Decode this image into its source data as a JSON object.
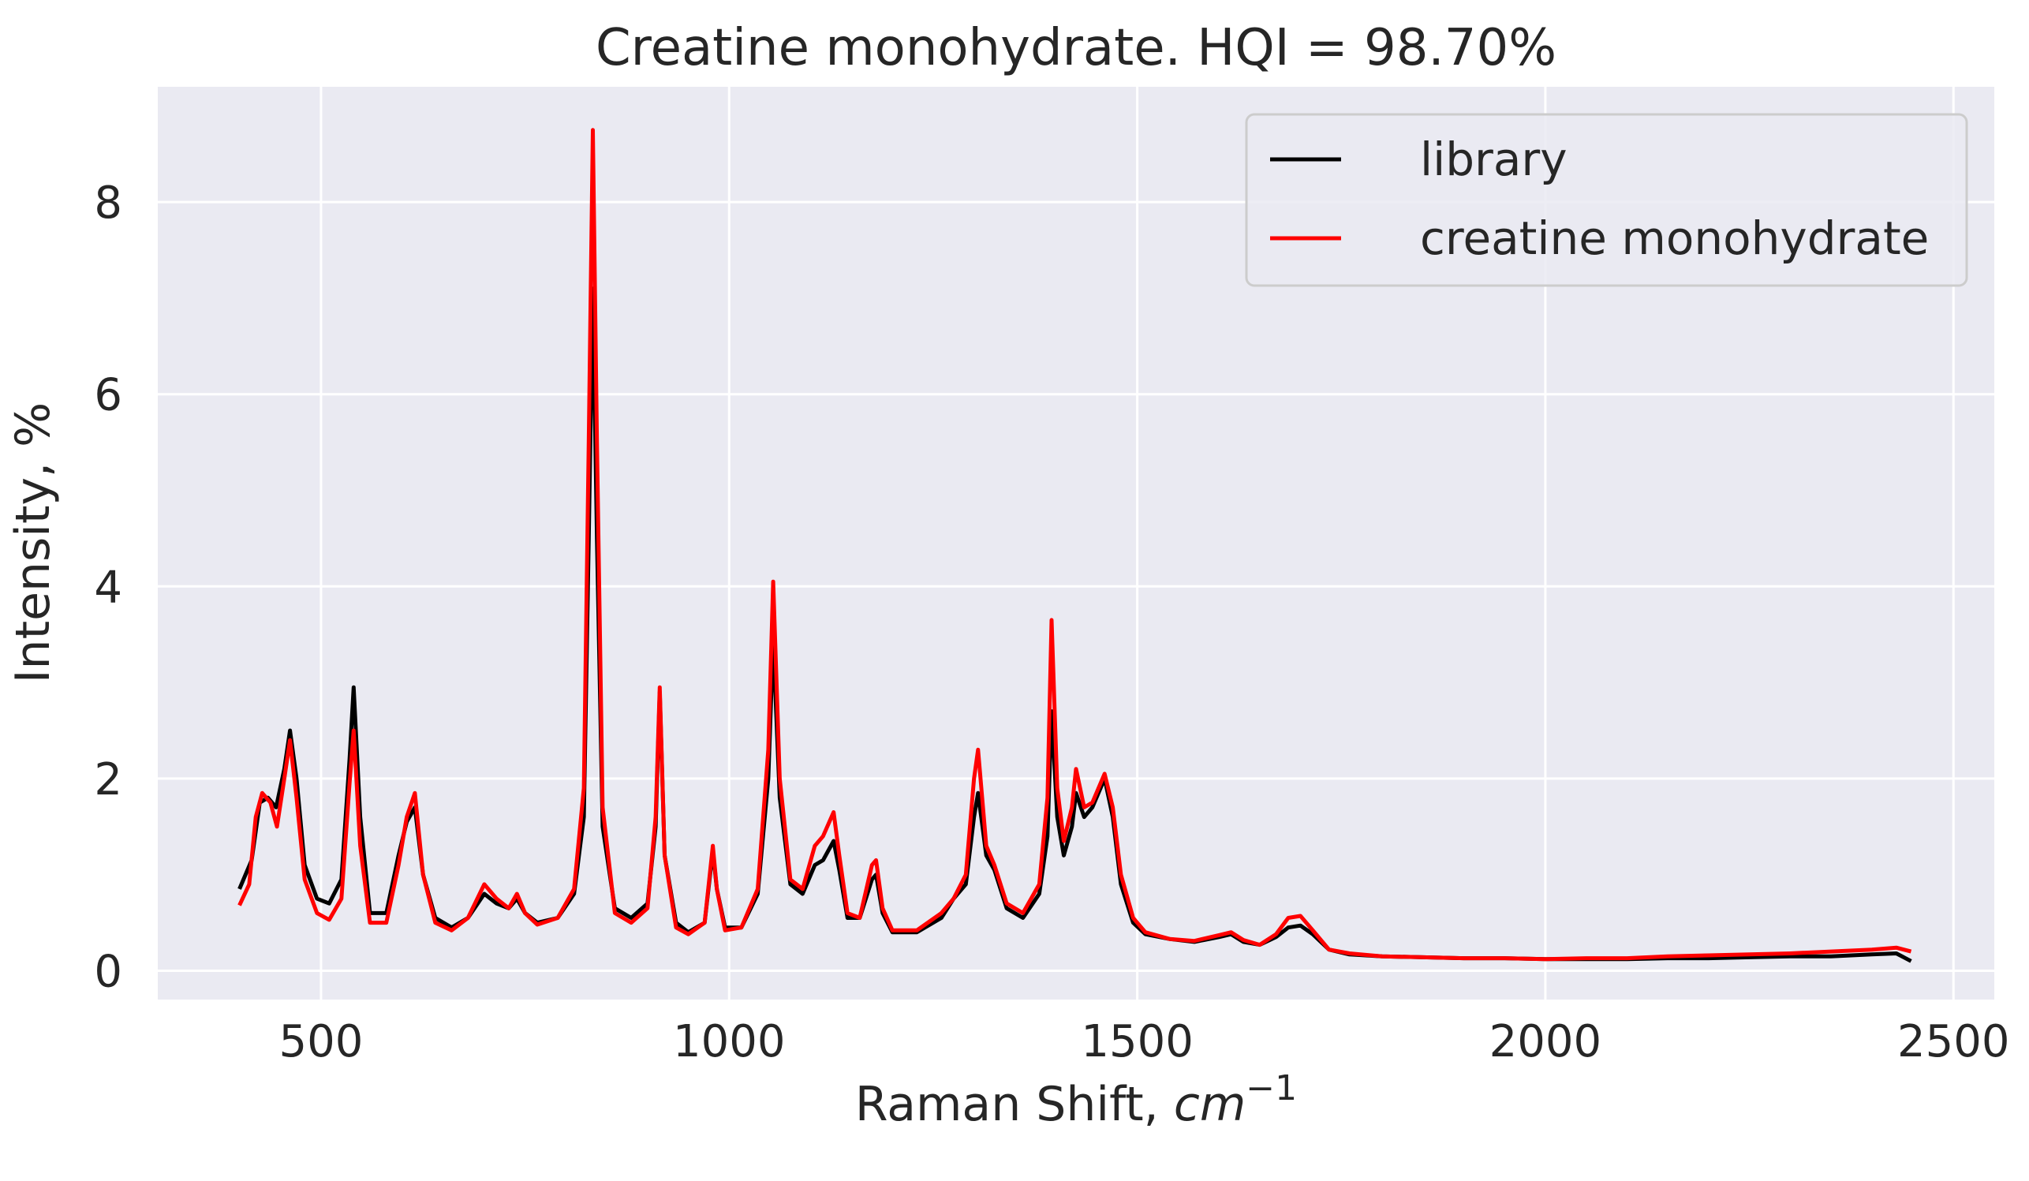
{
  "chart_data": {
    "type": "line",
    "title": "Creatine monohydrate. HQI = 98.70%",
    "xlabel": "Raman Shift, ",
    "xlabel_unit": "cm",
    "xlabel_exp": "−1",
    "ylabel": "Intensity, %",
    "xlim": [
      300,
      2550
    ],
    "ylim": [
      -0.3,
      9.2
    ],
    "xticks": [
      500,
      1000,
      1500,
      2000,
      2500
    ],
    "yticks": [
      0,
      2,
      4,
      6,
      8
    ],
    "grid": true,
    "legend_position": "top-right",
    "background": "#eaeaf2",
    "series": [
      {
        "name": "library",
        "color": "#000000",
        "points": [
          [
            400,
            0.85
          ],
          [
            415,
            1.15
          ],
          [
            425,
            1.75
          ],
          [
            435,
            1.8
          ],
          [
            445,
            1.7
          ],
          [
            455,
            2.1
          ],
          [
            462,
            2.5
          ],
          [
            470,
            2.0
          ],
          [
            480,
            1.1
          ],
          [
            495,
            0.75
          ],
          [
            510,
            0.7
          ],
          [
            525,
            0.95
          ],
          [
            535,
            2.2
          ],
          [
            540,
            2.95
          ],
          [
            548,
            1.6
          ],
          [
            560,
            0.6
          ],
          [
            580,
            0.6
          ],
          [
            595,
            1.2
          ],
          [
            605,
            1.55
          ],
          [
            615,
            1.7
          ],
          [
            625,
            1.0
          ],
          [
            640,
            0.55
          ],
          [
            660,
            0.45
          ],
          [
            680,
            0.55
          ],
          [
            700,
            0.8
          ],
          [
            715,
            0.7
          ],
          [
            730,
            0.65
          ],
          [
            740,
            0.75
          ],
          [
            750,
            0.6
          ],
          [
            765,
            0.5
          ],
          [
            790,
            0.55
          ],
          [
            810,
            0.8
          ],
          [
            822,
            1.6
          ],
          [
            828,
            4.5
          ],
          [
            833,
            7.1
          ],
          [
            838,
            4.5
          ],
          [
            845,
            1.5
          ],
          [
            860,
            0.65
          ],
          [
            880,
            0.55
          ],
          [
            900,
            0.7
          ],
          [
            910,
            1.5
          ],
          [
            915,
            2.9
          ],
          [
            921,
            1.2
          ],
          [
            935,
            0.5
          ],
          [
            950,
            0.4
          ],
          [
            970,
            0.5
          ],
          [
            980,
            1.25
          ],
          [
            985,
            0.85
          ],
          [
            995,
            0.45
          ],
          [
            1015,
            0.45
          ],
          [
            1035,
            0.8
          ],
          [
            1048,
            2.0
          ],
          [
            1054,
            3.45
          ],
          [
            1062,
            1.8
          ],
          [
            1075,
            0.9
          ],
          [
            1090,
            0.8
          ],
          [
            1105,
            1.1
          ],
          [
            1115,
            1.15
          ],
          [
            1128,
            1.35
          ],
          [
            1135,
            1.05
          ],
          [
            1145,
            0.55
          ],
          [
            1160,
            0.55
          ],
          [
            1175,
            0.95
          ],
          [
            1180,
            1.0
          ],
          [
            1188,
            0.6
          ],
          [
            1200,
            0.4
          ],
          [
            1230,
            0.4
          ],
          [
            1260,
            0.55
          ],
          [
            1275,
            0.75
          ],
          [
            1290,
            0.9
          ],
          [
            1300,
            1.6
          ],
          [
            1305,
            1.85
          ],
          [
            1315,
            1.2
          ],
          [
            1325,
            1.05
          ],
          [
            1340,
            0.65
          ],
          [
            1360,
            0.55
          ],
          [
            1380,
            0.8
          ],
          [
            1390,
            1.4
          ],
          [
            1395,
            2.7
          ],
          [
            1402,
            1.6
          ],
          [
            1410,
            1.2
          ],
          [
            1420,
            1.5
          ],
          [
            1425,
            1.85
          ],
          [
            1435,
            1.6
          ],
          [
            1445,
            1.7
          ],
          [
            1460,
            2.0
          ],
          [
            1470,
            1.6
          ],
          [
            1480,
            0.9
          ],
          [
            1495,
            0.5
          ],
          [
            1510,
            0.38
          ],
          [
            1540,
            0.33
          ],
          [
            1570,
            0.3
          ],
          [
            1600,
            0.35
          ],
          [
            1615,
            0.38
          ],
          [
            1630,
            0.3
          ],
          [
            1650,
            0.27
          ],
          [
            1670,
            0.35
          ],
          [
            1685,
            0.45
          ],
          [
            1700,
            0.47
          ],
          [
            1715,
            0.38
          ],
          [
            1735,
            0.22
          ],
          [
            1760,
            0.17
          ],
          [
            1800,
            0.15
          ],
          [
            1850,
            0.14
          ],
          [
            1900,
            0.13
          ],
          [
            1950,
            0.13
          ],
          [
            2000,
            0.12
          ],
          [
            2050,
            0.12
          ],
          [
            2100,
            0.12
          ],
          [
            2150,
            0.13
          ],
          [
            2200,
            0.13
          ],
          [
            2250,
            0.14
          ],
          [
            2300,
            0.15
          ],
          [
            2350,
            0.15
          ],
          [
            2400,
            0.17
          ],
          [
            2430,
            0.18
          ],
          [
            2448,
            0.1
          ]
        ]
      },
      {
        "name": "creatine monohydrate",
        "color": "#ff0000",
        "points": [
          [
            400,
            0.68
          ],
          [
            412,
            0.9
          ],
          [
            420,
            1.6
          ],
          [
            428,
            1.85
          ],
          [
            438,
            1.75
          ],
          [
            446,
            1.5
          ],
          [
            455,
            2.0
          ],
          [
            462,
            2.4
          ],
          [
            470,
            1.8
          ],
          [
            480,
            0.95
          ],
          [
            495,
            0.6
          ],
          [
            510,
            0.53
          ],
          [
            525,
            0.75
          ],
          [
            535,
            1.95
          ],
          [
            540,
            2.5
          ],
          [
            548,
            1.3
          ],
          [
            560,
            0.5
          ],
          [
            580,
            0.5
          ],
          [
            595,
            1.1
          ],
          [
            605,
            1.6
          ],
          [
            615,
            1.85
          ],
          [
            625,
            1.0
          ],
          [
            640,
            0.5
          ],
          [
            660,
            0.42
          ],
          [
            680,
            0.55
          ],
          [
            700,
            0.9
          ],
          [
            715,
            0.75
          ],
          [
            730,
            0.65
          ],
          [
            740,
            0.8
          ],
          [
            750,
            0.6
          ],
          [
            765,
            0.48
          ],
          [
            790,
            0.55
          ],
          [
            810,
            0.85
          ],
          [
            822,
            1.9
          ],
          [
            828,
            5.5
          ],
          [
            833,
            8.75
          ],
          [
            838,
            5.5
          ],
          [
            845,
            1.7
          ],
          [
            860,
            0.6
          ],
          [
            880,
            0.5
          ],
          [
            900,
            0.65
          ],
          [
            910,
            1.6
          ],
          [
            915,
            2.95
          ],
          [
            921,
            1.2
          ],
          [
            935,
            0.45
          ],
          [
            950,
            0.38
          ],
          [
            970,
            0.5
          ],
          [
            980,
            1.3
          ],
          [
            985,
            0.85
          ],
          [
            995,
            0.42
          ],
          [
            1015,
            0.45
          ],
          [
            1035,
            0.85
          ],
          [
            1048,
            2.3
          ],
          [
            1054,
            4.05
          ],
          [
            1062,
            2.0
          ],
          [
            1075,
            0.95
          ],
          [
            1090,
            0.85
          ],
          [
            1105,
            1.3
          ],
          [
            1115,
            1.4
          ],
          [
            1128,
            1.65
          ],
          [
            1135,
            1.2
          ],
          [
            1145,
            0.6
          ],
          [
            1160,
            0.55
          ],
          [
            1175,
            1.1
          ],
          [
            1180,
            1.15
          ],
          [
            1188,
            0.65
          ],
          [
            1200,
            0.42
          ],
          [
            1230,
            0.42
          ],
          [
            1260,
            0.6
          ],
          [
            1275,
            0.75
          ],
          [
            1290,
            1.0
          ],
          [
            1300,
            2.0
          ],
          [
            1305,
            2.3
          ],
          [
            1315,
            1.3
          ],
          [
            1325,
            1.1
          ],
          [
            1340,
            0.7
          ],
          [
            1360,
            0.6
          ],
          [
            1380,
            0.9
          ],
          [
            1390,
            1.8
          ],
          [
            1395,
            3.65
          ],
          [
            1402,
            1.9
          ],
          [
            1410,
            1.35
          ],
          [
            1420,
            1.7
          ],
          [
            1425,
            2.1
          ],
          [
            1435,
            1.7
          ],
          [
            1445,
            1.75
          ],
          [
            1460,
            2.05
          ],
          [
            1470,
            1.7
          ],
          [
            1480,
            1.0
          ],
          [
            1495,
            0.55
          ],
          [
            1510,
            0.4
          ],
          [
            1540,
            0.33
          ],
          [
            1570,
            0.31
          ],
          [
            1600,
            0.37
          ],
          [
            1615,
            0.4
          ],
          [
            1630,
            0.32
          ],
          [
            1650,
            0.27
          ],
          [
            1670,
            0.38
          ],
          [
            1685,
            0.55
          ],
          [
            1700,
            0.57
          ],
          [
            1715,
            0.42
          ],
          [
            1735,
            0.22
          ],
          [
            1760,
            0.18
          ],
          [
            1800,
            0.15
          ],
          [
            1850,
            0.14
          ],
          [
            1900,
            0.13
          ],
          [
            1950,
            0.13
          ],
          [
            2000,
            0.12
          ],
          [
            2050,
            0.13
          ],
          [
            2100,
            0.13
          ],
          [
            2150,
            0.15
          ],
          [
            2200,
            0.16
          ],
          [
            2250,
            0.17
          ],
          [
            2300,
            0.18
          ],
          [
            2350,
            0.2
          ],
          [
            2400,
            0.22
          ],
          [
            2430,
            0.24
          ],
          [
            2448,
            0.2
          ]
        ]
      }
    ]
  }
}
